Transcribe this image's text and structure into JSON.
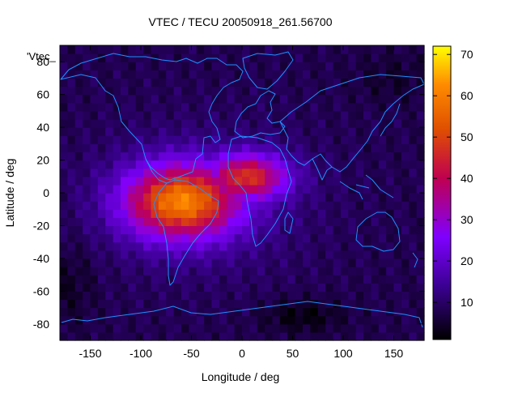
{
  "chart_data": {
    "type": "heatmap",
    "title": "VTEC / TECU 20050918_261.56700",
    "series_label": "'Vtec_",
    "xlabel": "Longitude / deg",
    "ylabel": "Latitude / deg",
    "xlim": [
      -180,
      180
    ],
    "ylim": [
      -90,
      90
    ],
    "x_ticks": [
      -150,
      -100,
      -50,
      0,
      50,
      100,
      150
    ],
    "y_ticks": [
      -80,
      -60,
      -40,
      -20,
      0,
      20,
      40,
      60,
      80
    ],
    "colorbar": {
      "range": [
        1,
        72
      ],
      "ticks": [
        10,
        20,
        30,
        40,
        50,
        60,
        70
      ],
      "palette": [
        "#000000",
        "#3a0090",
        "#7f00ff",
        "#c00050",
        "#e05000",
        "#ff8c00",
        "#ffff00"
      ]
    },
    "grid_resolution": {
      "dlon": 7.5,
      "dlat": 5
    },
    "field_description_values": {
      "background_tec": 8,
      "peak_tec": 55,
      "peak_center_lon": -60,
      "peak_center_lat": -5
    },
    "coastline_color": "#1e90ff"
  }
}
